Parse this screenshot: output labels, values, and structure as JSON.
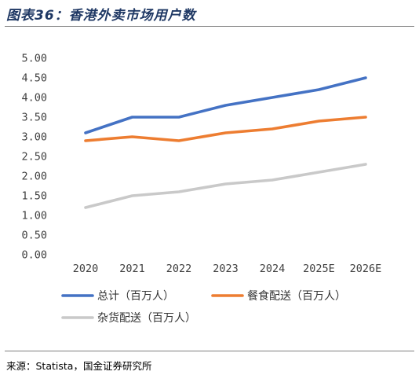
{
  "header": {
    "title": "图表36：香港外卖市场用户数"
  },
  "footer": {
    "source": "来源：Statista，国金证券研究所"
  },
  "chart_data": {
    "type": "line",
    "categories": [
      "2020",
      "2021",
      "2022",
      "2023",
      "2024",
      "2025E",
      "2026E"
    ],
    "y_ticks": [
      "0.00",
      "0.50",
      "1.00",
      "1.50",
      "2.00",
      "2.50",
      "3.00",
      "3.50",
      "4.00",
      "4.50",
      "5.00"
    ],
    "ylim": [
      0,
      5
    ],
    "grid": false,
    "legend_position": "bottom",
    "series": [
      {
        "name": "总计（百万人）",
        "color": "#4472c4",
        "values": [
          3.1,
          3.5,
          3.5,
          3.8,
          4.0,
          4.2,
          4.5
        ]
      },
      {
        "name": "餐食配送（百万人）",
        "color": "#ed7d31",
        "values": [
          2.9,
          3.0,
          2.9,
          3.1,
          3.2,
          3.4,
          3.5
        ]
      },
      {
        "name": "杂货配送（百万人）",
        "color": "#c9c9c9",
        "values": [
          1.2,
          1.5,
          1.6,
          1.8,
          1.9,
          2.1,
          2.3
        ]
      }
    ]
  }
}
